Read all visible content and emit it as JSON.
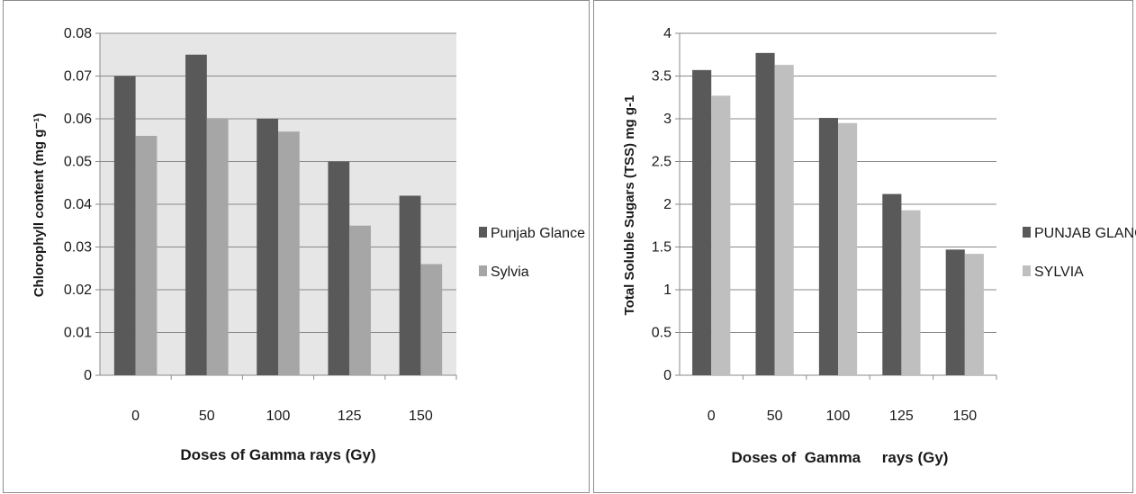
{
  "chart_data": [
    {
      "type": "bar",
      "categories": [
        "0",
        "50",
        "100",
        "125",
        "150"
      ],
      "series": [
        {
          "name": "Punjab Glance",
          "values": [
            0.07,
            0.075,
            0.06,
            0.05,
            0.042
          ],
          "color": "#595959"
        },
        {
          "name": "Sylvia",
          "values": [
            0.056,
            0.06,
            0.057,
            0.035,
            0.026
          ],
          "color": "#a6a6a6"
        }
      ],
      "yticks": [
        "0",
        "0.01",
        "0.02",
        "0.03",
        "0.04",
        "0.05",
        "0.06",
        "0.07",
        "0.08"
      ],
      "ylim": [
        0,
        0.08
      ],
      "xlabel": "Doses of Gamma rays (Gy)",
      "ylabel": "Chlorophyll content (mg g⁻¹)",
      "grid": true,
      "plot_background": "#e6e6e6",
      "legend": "right"
    },
    {
      "type": "bar",
      "categories": [
        "0",
        "50",
        "100",
        "125",
        "150"
      ],
      "series": [
        {
          "name": "PUNJAB GLANCE",
          "values": [
            3.57,
            3.77,
            3.01,
            2.12,
            1.47
          ],
          "color": "#595959"
        },
        {
          "name": "SYLVIA",
          "values": [
            3.27,
            3.63,
            2.95,
            1.93,
            1.42
          ],
          "color": "#bfbfbf"
        }
      ],
      "yticks": [
        "0",
        "0.5",
        "1",
        "1.5",
        "2",
        "2.5",
        "3",
        "3.5",
        "4"
      ],
      "ylim": [
        0,
        4
      ],
      "xlabel": "Doses of  Gamma     rays (Gy)",
      "ylabel": "Total Soluble  Sugars (TSS) mg g-1",
      "grid": true,
      "plot_background": "#ffffff",
      "legend": "right"
    }
  ]
}
